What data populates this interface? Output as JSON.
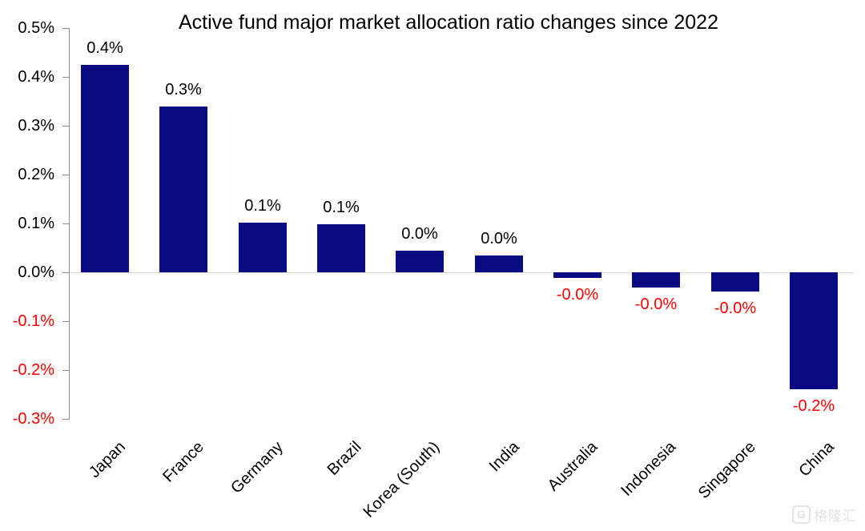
{
  "chart_data": {
    "type": "bar",
    "title": "Active fund major market allocation ratio changes since 2022",
    "xlabel": "",
    "ylabel": "",
    "unit": "%",
    "legend": "none",
    "grid": "zero-baseline-only",
    "categories": [
      "Japan",
      "France",
      "Germany",
      "Brazil",
      "Korea (South)",
      "India",
      "Australia",
      "Indonesia",
      "Singapore",
      "China"
    ],
    "values": [
      0.425,
      0.34,
      0.102,
      0.098,
      0.045,
      0.035,
      -0.011,
      -0.031,
      -0.04,
      -0.24
    ],
    "data_labels": [
      "0.4%",
      "0.3%",
      "0.1%",
      "0.1%",
      "0.0%",
      "0.0%",
      "-0.0%",
      "-0.0%",
      "-0.0%",
      "-0.2%"
    ],
    "y_axis": {
      "range": [
        -0.3,
        0.5
      ],
      "ticks": [
        {
          "label": "0.5%",
          "value": 0.5
        },
        {
          "label": "0.4%",
          "value": 0.4
        },
        {
          "label": "0.3%",
          "value": 0.3
        },
        {
          "label": "0.2%",
          "value": 0.2
        },
        {
          "label": "0.1%",
          "value": 0.1
        },
        {
          "label": "0.0%",
          "value": 0.0
        },
        {
          "label": "-0.1%",
          "value": -0.1
        },
        {
          "label": "-0.2%",
          "value": -0.2
        },
        {
          "label": "-0.3%",
          "value": -0.3
        }
      ]
    },
    "colors": {
      "bar": "#0a0a82",
      "positive_label": "#000000",
      "negative_label": "#ff0000",
      "positive_tick": "#000000",
      "negative_tick": "#ff0000",
      "baseline": "#d9d9d9",
      "axis": "#8c8c8c"
    }
  },
  "watermark": {
    "logo_letter": "G",
    "brand_text": "格隆汇"
  }
}
